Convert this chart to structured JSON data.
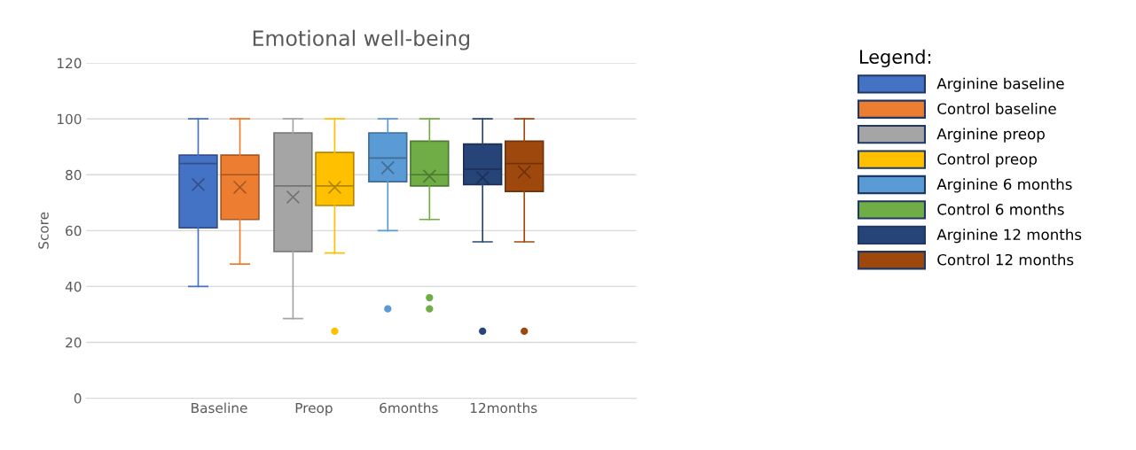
{
  "chart_data": {
    "type": "box",
    "title": "Emotional well-being",
    "ylabel": "Score",
    "legend_title": "Legend:",
    "categories": [
      "Baseline",
      "Preop",
      "6months",
      "12months"
    ],
    "ylim": [
      0,
      120
    ],
    "yticks": [
      0,
      20,
      40,
      60,
      80,
      100,
      120
    ],
    "grid": "y",
    "legend": "right",
    "series": [
      {
        "name": "Arginine baseline",
        "color": "#4472c4",
        "boxes": [
          {
            "low": 40,
            "q1": 61,
            "median": 84,
            "q3": 87,
            "high": 100,
            "mean": 76.5
          },
          null,
          null,
          null
        ]
      },
      {
        "name": "Control baseline",
        "color": "#ed7d31",
        "boxes": [
          {
            "low": 48,
            "q1": 64,
            "median": 80,
            "q3": 87,
            "high": 100,
            "mean": 75.5
          },
          null,
          null,
          null
        ]
      },
      {
        "name": "Arginine preop",
        "color": "#a5a5a5",
        "boxes": [
          null,
          {
            "low": 28.5,
            "q1": 52.5,
            "median": 76,
            "q3": 95,
            "high": 100,
            "mean": 72
          },
          null,
          null
        ]
      },
      {
        "name": "Control preop",
        "color": "#ffc000",
        "boxes": [
          null,
          {
            "low": 52,
            "q1": 69,
            "median": 76,
            "q3": 88,
            "high": 100,
            "mean": 75.5,
            "outliers": [
              24
            ]
          },
          null,
          null
        ]
      },
      {
        "name": "Arginine 6 months",
        "color": "#5b9bd5",
        "boxes": [
          null,
          null,
          {
            "low": 60,
            "q1": 77.5,
            "median": 86,
            "q3": 95,
            "high": 100,
            "mean": 82.5,
            "outliers": [
              32
            ]
          },
          null
        ]
      },
      {
        "name": "Control 6 months",
        "color": "#70ad47",
        "boxes": [
          null,
          null,
          {
            "low": 64,
            "q1": 76,
            "median": 80,
            "q3": 92,
            "high": 100,
            "mean": 79.5,
            "outliers": [
              36,
              32
            ]
          },
          null
        ]
      },
      {
        "name": "Arginine 12 months",
        "color": "#264478",
        "boxes": [
          null,
          null,
          null,
          {
            "low": 56,
            "q1": 76.5,
            "median": 82,
            "q3": 91,
            "high": 100,
            "mean": 79,
            "outliers": [
              24
            ]
          }
        ]
      },
      {
        "name": "Control 12 months",
        "color": "#9e480e",
        "boxes": [
          null,
          null,
          null,
          {
            "low": 56,
            "q1": 74,
            "median": 84,
            "q3": 92,
            "high": 100,
            "mean": 81,
            "outliers": [
              24
            ]
          }
        ]
      }
    ]
  }
}
